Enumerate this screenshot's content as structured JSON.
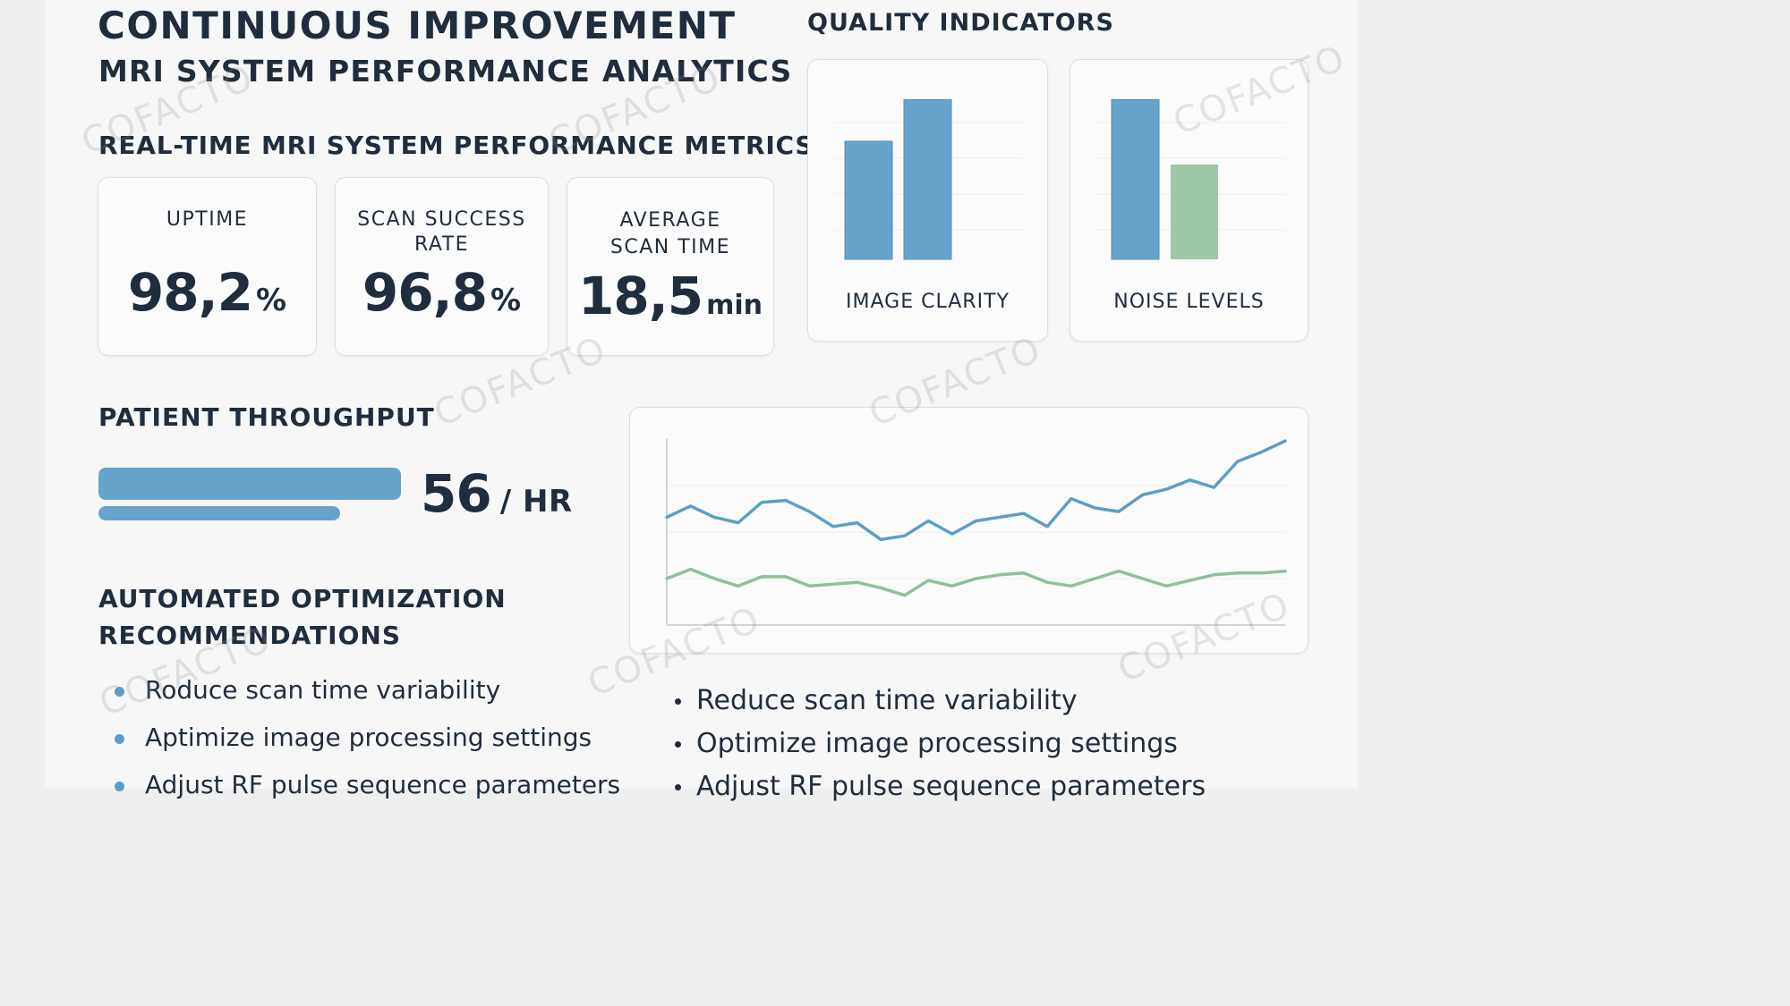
{
  "header": {
    "title": "CONTINUOUS IMPROVEMENT",
    "subtitle": "MRI SYSTEM PERFORMANCE ANALYTICS"
  },
  "metrics_section": {
    "heading": "REAL-TIME MRI SYSTEM PERFORMANCE METRICS",
    "kpis": [
      {
        "label": "UPTIME",
        "value": "98,2",
        "unit": "%"
      },
      {
        "label": "SCAN SUCCESS RATE",
        "value": "96,8",
        "unit": "%"
      },
      {
        "label": "AVERAGE SCAN TIME",
        "value": "18,5",
        "unit": "min"
      }
    ]
  },
  "quality_section": {
    "heading": "QUALITY INDICATORS",
    "cards": [
      {
        "label": "IMAGE CLARITY",
        "bars": [
          0.71,
          0.96
        ],
        "colors": [
          "#66a4cc",
          "#66a4cc"
        ]
      },
      {
        "label": "NOISE LEVELS",
        "bars": [
          0.96,
          0.57
        ],
        "colors": [
          "#66a4cc",
          "#9cc8a8"
        ]
      }
    ]
  },
  "throughput": {
    "heading": "PATIENT THROUGHPUT",
    "value": "56",
    "unit": "/ HR",
    "bar_fill": 0.8
  },
  "chart_data": {
    "type": "line",
    "title": "",
    "xlabel": "",
    "ylabel": "",
    "x": [
      1,
      2,
      3,
      4,
      5,
      6,
      7,
      8,
      9,
      10,
      11,
      12,
      13,
      14,
      15,
      16,
      17,
      18,
      19,
      20,
      21,
      22,
      23,
      24,
      25,
      26,
      27
    ],
    "ylim": [
      0,
      100
    ],
    "grid": true,
    "series": [
      {
        "color": "#5d9ec9",
        "values": [
          58,
          64,
          58,
          55,
          66,
          67,
          61,
          53,
          55,
          46,
          48,
          56,
          49,
          56,
          58,
          60,
          53,
          68,
          63,
          61,
          70,
          73,
          78,
          74,
          88,
          93,
          99
        ]
      },
      {
        "color": "#8fc09c",
        "values": [
          25,
          30,
          25,
          21,
          26,
          26,
          21,
          22,
          23,
          20,
          16,
          24,
          21,
          25,
          27,
          28,
          23,
          21,
          25,
          29,
          25,
          21,
          24,
          27,
          28,
          28,
          29
        ]
      }
    ]
  },
  "recommendations": {
    "heading_line1": "AUTOMATED OPTIMIZATION",
    "heading_line2": "RECOMMENDATIONS",
    "left_items": [
      "Roduce scan time variability",
      "Aptimize image processing settings",
      "Adjust RF pulse sequence parameters"
    ],
    "right_items": [
      "Reduce scan time variability",
      "Optimize image processing settings",
      "Adjust RF pulse sequence parameters"
    ]
  },
  "watermark": "COFACTO",
  "colors": {
    "accent_blue": "#5d9ec9",
    "accent_green": "#8fc09c",
    "text": "#1f2d3d"
  }
}
